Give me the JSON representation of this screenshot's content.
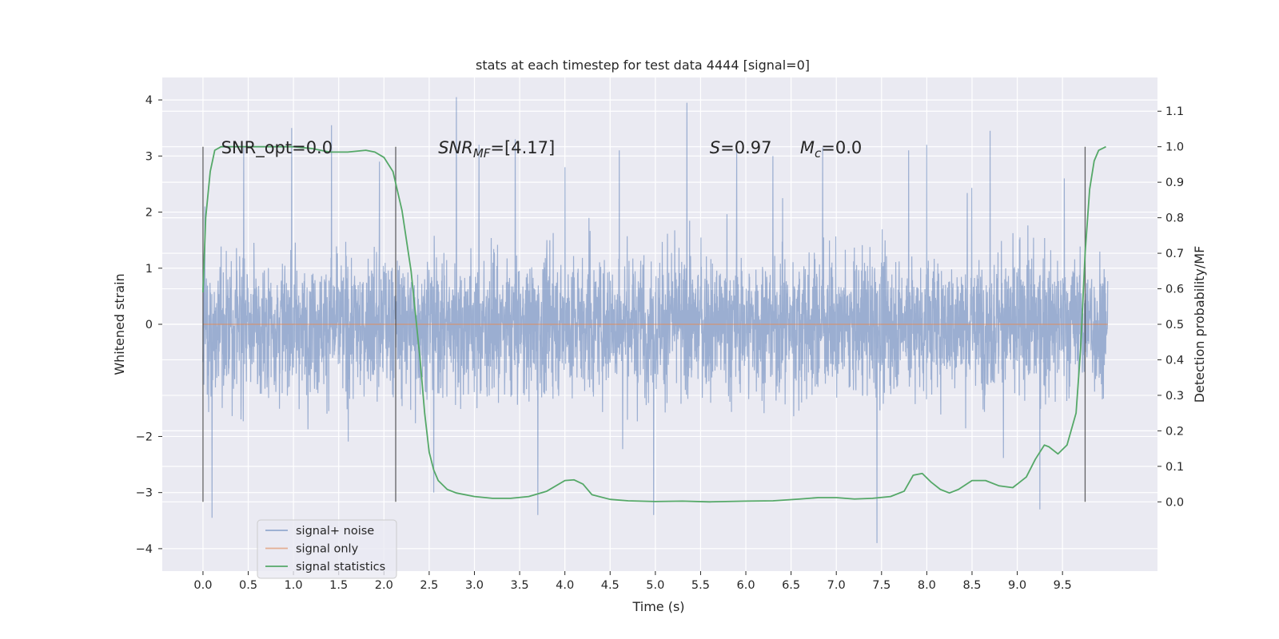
{
  "chart_data": {
    "type": "line",
    "title": "stats at each timestep for test data 4444 [signal=0]",
    "xlabel": "Time (s)",
    "ylabel": "Whitened strain",
    "y2label": "Detection probability/MF",
    "xlim": [
      -0.45,
      10.55
    ],
    "ylim": [
      -4.4,
      4.4
    ],
    "y2lim": [
      -0.195,
      1.195
    ],
    "xticks": [
      "0.0",
      "0.5",
      "1.0",
      "1.5",
      "2.0",
      "2.5",
      "3.0",
      "3.5",
      "4.0",
      "4.5",
      "5.0",
      "5.5",
      "6.0",
      "6.5",
      "7.0",
      "7.5",
      "8.0",
      "8.5",
      "9.0",
      "9.5"
    ],
    "yticks": [
      "4",
      "3",
      "2",
      "1",
      "0",
      "−2",
      "−3",
      "−4"
    ],
    "y2ticks": [
      "1.1",
      "1.0",
      "0.9",
      "0.8",
      "0.7",
      "0.6",
      "0.5",
      "0.4",
      "0.3",
      "0.2",
      "0.1",
      "0.0"
    ],
    "grid": true,
    "legend_position": "lower-left",
    "series": [
      {
        "name": "signal+ noise",
        "color": "#4c72b0",
        "axis": "left",
        "description": "dense whitened noise trace over 0.0-10.0 s; body roughly -1.3..1.3 with spikes to about ±3.5",
        "x_range": [
          0.0,
          10.0
        ],
        "peaks": [
          [
            0.02,
            2.1
          ],
          [
            0.1,
            -3.45
          ],
          [
            0.45,
            3.15
          ],
          [
            0.98,
            3.5
          ],
          [
            1.42,
            3.55
          ],
          [
            1.95,
            2.9
          ],
          [
            2.55,
            -3.0
          ],
          [
            2.8,
            4.05
          ],
          [
            3.05,
            3.2
          ],
          [
            3.45,
            3.3
          ],
          [
            3.7,
            -3.4
          ],
          [
            4.0,
            2.8
          ],
          [
            4.6,
            3.1
          ],
          [
            4.98,
            -3.4
          ],
          [
            5.35,
            3.95
          ],
          [
            5.9,
            3.1
          ],
          [
            6.3,
            3.0
          ],
          [
            6.85,
            3.15
          ],
          [
            7.45,
            -3.9
          ],
          [
            7.8,
            3.1
          ],
          [
            8.0,
            3.2
          ],
          [
            8.7,
            3.45
          ],
          [
            9.25,
            -3.3
          ],
          [
            9.52,
            2.6
          ]
        ]
      },
      {
        "name": "signal only",
        "color": "#dd8452",
        "axis": "left",
        "x": [
          0.0,
          10.0
        ],
        "y": [
          0.0,
          0.0
        ]
      },
      {
        "name": "signal statistics",
        "color": "#55a868",
        "axis": "right",
        "x": [
          0.0,
          0.03,
          0.08,
          0.13,
          0.2,
          0.3,
          0.5,
          0.8,
          1.0,
          1.2,
          1.4,
          1.6,
          1.8,
          1.9,
          2.0,
          2.1,
          2.2,
          2.3,
          2.4,
          2.45,
          2.5,
          2.55,
          2.6,
          2.7,
          2.8,
          3.0,
          3.2,
          3.4,
          3.6,
          3.8,
          4.0,
          4.1,
          4.2,
          4.3,
          4.5,
          4.7,
          5.0,
          5.3,
          5.6,
          6.0,
          6.3,
          6.6,
          6.8,
          7.0,
          7.2,
          7.4,
          7.6,
          7.75,
          7.85,
          7.95,
          8.05,
          8.15,
          8.25,
          8.35,
          8.5,
          8.65,
          8.8,
          8.95,
          9.1,
          9.2,
          9.3,
          9.35,
          9.45,
          9.55,
          9.65,
          9.7,
          9.75,
          9.8,
          9.85,
          9.9,
          9.98
        ],
        "y": [
          0.59,
          0.8,
          0.93,
          0.99,
          1.0,
          1.0,
          1.0,
          1.0,
          1.0,
          0.995,
          0.985,
          0.985,
          0.99,
          0.985,
          0.97,
          0.93,
          0.82,
          0.65,
          0.4,
          0.25,
          0.14,
          0.09,
          0.06,
          0.035,
          0.025,
          0.015,
          0.01,
          0.01,
          0.015,
          0.03,
          0.06,
          0.062,
          0.05,
          0.02,
          0.007,
          0.003,
          0.001,
          0.002,
          0.0,
          0.002,
          0.003,
          0.008,
          0.012,
          0.012,
          0.008,
          0.01,
          0.015,
          0.03,
          0.075,
          0.08,
          0.055,
          0.035,
          0.025,
          0.035,
          0.06,
          0.06,
          0.045,
          0.04,
          0.07,
          0.12,
          0.16,
          0.155,
          0.135,
          0.16,
          0.25,
          0.43,
          0.7,
          0.88,
          0.96,
          0.99,
          1.0
        ]
      }
    ],
    "vertical_lines": [
      0.0,
      2.13,
      9.75
    ],
    "annotations": [
      {
        "text": "SNR_opt=0.0",
        "x": 0.2,
        "y": 3.15
      },
      {
        "text": "SNR",
        "sub": "MF",
        "post": "=[4.17]",
        "x": 2.6,
        "y": 3.15
      },
      {
        "text": "S",
        "post": "=0.97",
        "x": 5.6,
        "y": 3.15
      },
      {
        "text": "M",
        "sub": "c",
        "post": "=0.0",
        "x": 6.6,
        "y": 3.15
      }
    ]
  }
}
